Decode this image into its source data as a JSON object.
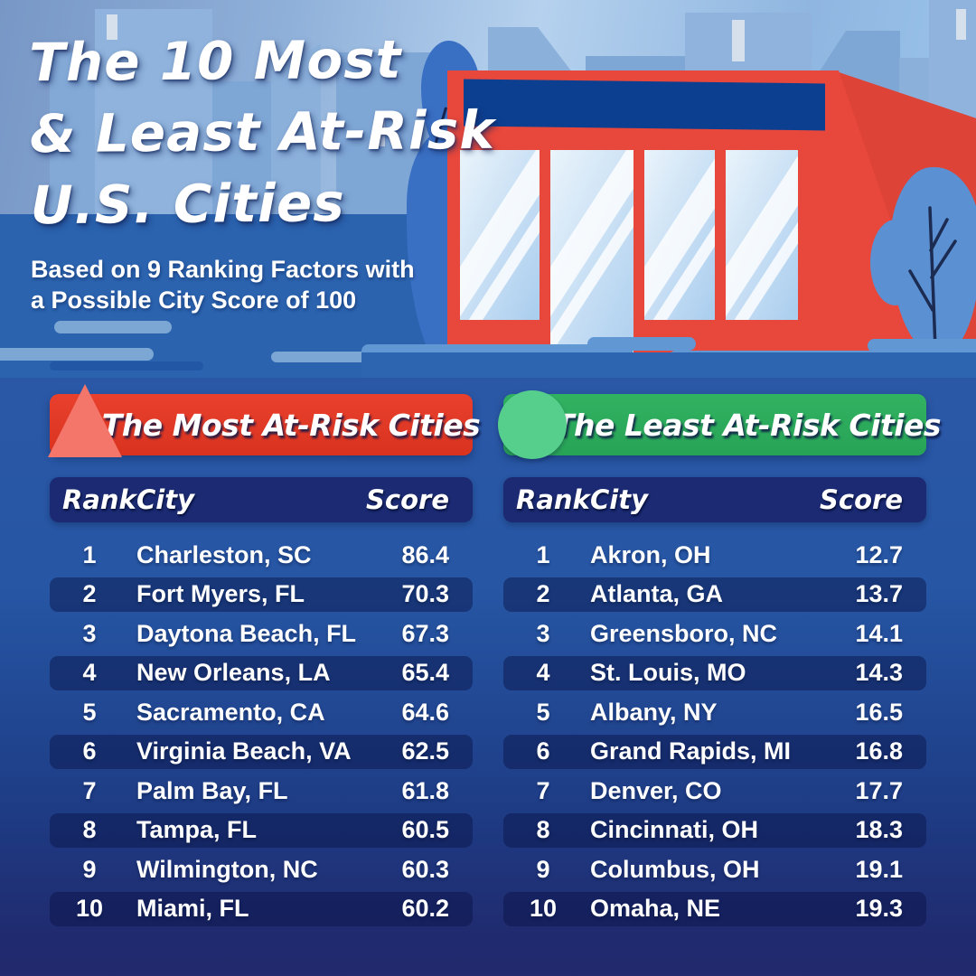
{
  "hero": {
    "title_lines": [
      "The 10 Most",
      "& Least At-Risk",
      "U.S. Cities"
    ],
    "subtitle_lines": [
      "Based on 9 Ranking Factors with",
      "a Possible City Score of 100"
    ]
  },
  "tables": [
    {
      "id": "most",
      "banner": "The Most At-Risk Cities",
      "icon": "triangle-icon",
      "banner_color": "#e23823",
      "icon_color": "#f4766b",
      "columns": {
        "rank": "Rank",
        "city": "City",
        "score": "Score"
      },
      "rows": [
        {
          "rank": "1",
          "city": "Charleston, SC",
          "score": "86.4"
        },
        {
          "rank": "2",
          "city": "Fort Myers, FL",
          "score": "70.3"
        },
        {
          "rank": "3",
          "city": "Daytona Beach, FL",
          "score": "67.3"
        },
        {
          "rank": "4",
          "city": "New Orleans, LA",
          "score": "65.4"
        },
        {
          "rank": "5",
          "city": "Sacramento, CA",
          "score": "64.6"
        },
        {
          "rank": "6",
          "city": "Virginia Beach, VA",
          "score": "62.5"
        },
        {
          "rank": "7",
          "city": "Palm Bay, FL",
          "score": "61.8"
        },
        {
          "rank": "8",
          "city": "Tampa, FL",
          "score": "60.5"
        },
        {
          "rank": "9",
          "city": "Wilmington, NC",
          "score": "60.3"
        },
        {
          "rank": "10",
          "city": "Miami, FL",
          "score": "60.2"
        }
      ]
    },
    {
      "id": "least",
      "banner": "The Least At-Risk Cities",
      "icon": "circle-icon",
      "banner_color": "#2cab5c",
      "icon_color": "#57cf8c",
      "columns": {
        "rank": "Rank",
        "city": "City",
        "score": "Score"
      },
      "rows": [
        {
          "rank": "1",
          "city": "Akron, OH",
          "score": "12.7"
        },
        {
          "rank": "2",
          "city": "Atlanta, GA",
          "score": "13.7"
        },
        {
          "rank": "3",
          "city": "Greensboro, NC",
          "score": "14.1"
        },
        {
          "rank": "4",
          "city": "St. Louis, MO",
          "score": "14.3"
        },
        {
          "rank": "5",
          "city": "Albany, NY",
          "score": "16.5"
        },
        {
          "rank": "6",
          "city": "Grand Rapids, MI",
          "score": "16.8"
        },
        {
          "rank": "7",
          "city": "Denver, CO",
          "score": "17.7"
        },
        {
          "rank": "8",
          "city": "Cincinnati, OH",
          "score": "18.3"
        },
        {
          "rank": "9",
          "city": "Columbus, OH",
          "score": "19.1"
        },
        {
          "rank": "10",
          "city": "Omaha, NE",
          "score": "19.3"
        }
      ]
    }
  ],
  "colors": {
    "sky_top": "#7897c6",
    "sky_light": "#b5d1ee",
    "water": "#2b63af",
    "section_top": "#2b58a6",
    "section_bottom": "#232a6d",
    "header_bar": "#1b2a72",
    "row_alt": "rgba(9,17,68,0.45)",
    "store_red": "#e8473b",
    "store_sign_navy": "#0d3f90",
    "text": "#ffffff"
  },
  "chart_data": [
    {
      "type": "table",
      "title": "The Most At-Risk Cities",
      "columns": [
        "Rank",
        "City",
        "Score"
      ],
      "rows": [
        [
          1,
          "Charleston, SC",
          86.4
        ],
        [
          2,
          "Fort Myers, FL",
          70.3
        ],
        [
          3,
          "Daytona Beach, FL",
          67.3
        ],
        [
          4,
          "New Orleans, LA",
          65.4
        ],
        [
          5,
          "Sacramento, CA",
          64.6
        ],
        [
          6,
          "Virginia Beach, VA",
          62.5
        ],
        [
          7,
          "Palm Bay, FL",
          61.8
        ],
        [
          8,
          "Tampa, FL",
          60.5
        ],
        [
          9,
          "Wilmington, NC",
          60.3
        ],
        [
          10,
          "Miami, FL",
          60.2
        ]
      ]
    },
    {
      "type": "table",
      "title": "The Least At-Risk Cities",
      "columns": [
        "Rank",
        "City",
        "Score"
      ],
      "rows": [
        [
          1,
          "Akron, OH",
          12.7
        ],
        [
          2,
          "Atlanta, GA",
          13.7
        ],
        [
          3,
          "Greensboro, NC",
          14.1
        ],
        [
          4,
          "St. Louis, MO",
          14.3
        ],
        [
          5,
          "Albany, NY",
          16.5
        ],
        [
          6,
          "Grand Rapids, MI",
          16.8
        ],
        [
          7,
          "Denver, CO",
          17.7
        ],
        [
          8,
          "Cincinnati, OH",
          18.3
        ],
        [
          9,
          "Columbus, OH",
          19.1
        ],
        [
          10,
          "Omaha, NE",
          19.3
        ]
      ]
    }
  ]
}
